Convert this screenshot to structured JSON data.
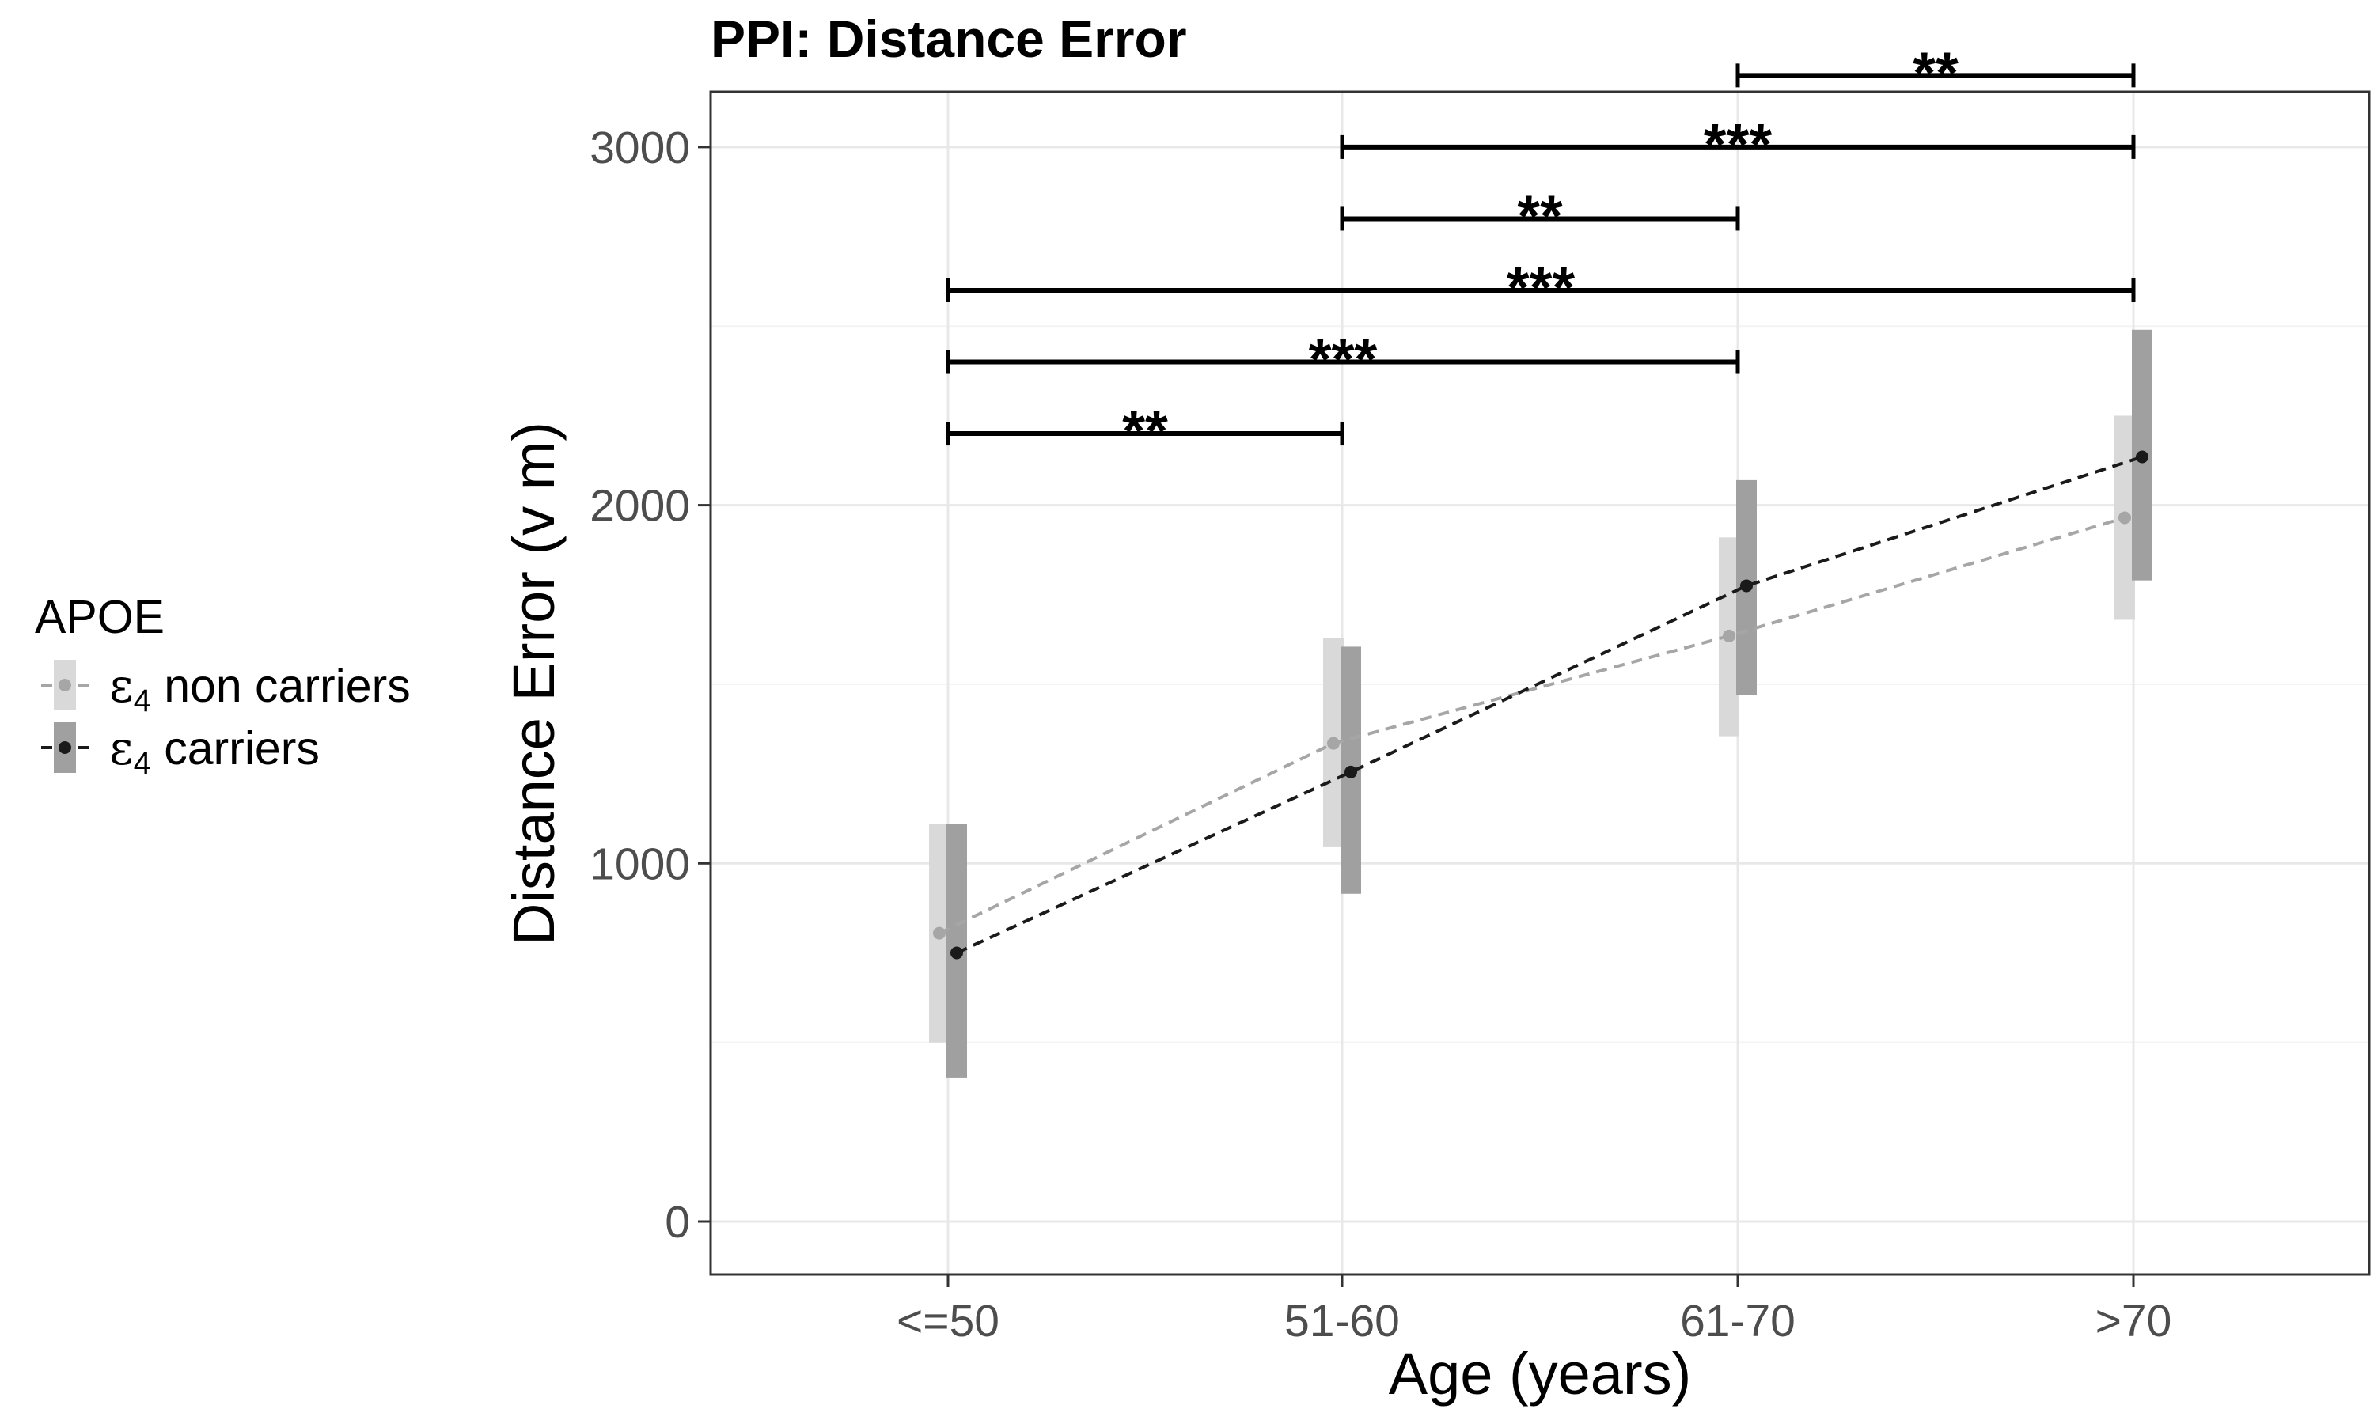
{
  "chart_data": {
    "type": "line",
    "title": "PPI: Distance Error",
    "xlabel": "Age (years)",
    "ylabel": "Distance Error (v m)",
    "categories": [
      "<=50",
      "51-60",
      "61-70",
      ">70"
    ],
    "ylim": [
      -150,
      3150
    ],
    "yticks": [
      0,
      1000,
      2000,
      3000
    ],
    "grid": true,
    "legend": {
      "title": "APOE",
      "position": "left",
      "entries": [
        {
          "symbol": "ε",
          "subscript": "4",
          "text": " non carriers"
        },
        {
          "symbol": "ε",
          "subscript": "4",
          "text": " carriers"
        }
      ]
    },
    "series": [
      {
        "name": "ε4 non carriers",
        "color": "#a6a6a6",
        "band_color": "#d9d9d9",
        "values": [
          805,
          1335,
          1635,
          1965
        ],
        "lower": [
          500,
          1045,
          1355,
          1680
        ],
        "upper": [
          1110,
          1630,
          1910,
          2250
        ]
      },
      {
        "name": "ε4 carriers",
        "color": "#1a1a1a",
        "band_color": "#a0a0a0",
        "values": [
          750,
          1255,
          1775,
          2135
        ],
        "lower": [
          400,
          915,
          1470,
          1790
        ],
        "upper": [
          1110,
          1605,
          2070,
          2490
        ]
      }
    ],
    "significance": [
      {
        "from": 0,
        "to": 1,
        "y": 2200,
        "label": "**"
      },
      {
        "from": 0,
        "to": 2,
        "y": 2400,
        "label": "***"
      },
      {
        "from": 0,
        "to": 3,
        "y": 2600,
        "label": "***"
      },
      {
        "from": 1,
        "to": 2,
        "y": 2800,
        "label": "**"
      },
      {
        "from": 1,
        "to": 3,
        "y": 3000,
        "label": "***"
      },
      {
        "from": 2,
        "to": 3,
        "y": 3200,
        "label": "**"
      }
    ]
  }
}
